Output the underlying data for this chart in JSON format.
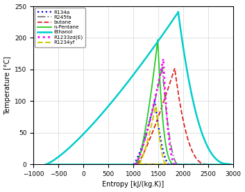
{
  "xlabel": "Entropy [kJ/(kg.K)]",
  "ylabel": "Temperature [°C]",
  "xlim": [
    -1000,
    3000
  ],
  "ylim": [
    0,
    250
  ],
  "xticks": [
    -1000,
    -500,
    0,
    500,
    1000,
    1500,
    2000,
    2500,
    3000
  ],
  "yticks": [
    0,
    50,
    100,
    150,
    200,
    250
  ],
  "fluids": [
    {
      "name": "R134a",
      "color": "#0000EE",
      "linestyle": "dotted",
      "linewidth": 1.6,
      "Tc": 101.06,
      "s_liq_0": 1000,
      "s_vap_0": 1720,
      "sc": 1432,
      "liq_exp": 0.72,
      "vap_exp": 0.55
    },
    {
      "name": "R245fa",
      "color": "#777777",
      "linestyle": "dashdot",
      "linewidth": 1.3,
      "Tc": 154.01,
      "s_liq_0": 1040,
      "s_vap_0": 1900,
      "sc": 1580,
      "liq_exp": 0.75,
      "vap_exp": 0.48
    },
    {
      "name": "butane",
      "color": "#DD2222",
      "linestyle": "dashed",
      "linewidth": 1.3,
      "Tc": 151.98,
      "s_liq_0": 1080,
      "s_vap_0": 2490,
      "sc": 1830,
      "liq_exp": 0.82,
      "vap_exp": 0.38
    },
    {
      "name": "n-Pentane",
      "color": "#22CC22",
      "linestyle": "solid",
      "linewidth": 1.3,
      "Tc": 196.55,
      "s_liq_0": 1060,
      "s_vap_0": 1850,
      "sc": 1490,
      "liq_exp": 0.68,
      "vap_exp": 0.32
    },
    {
      "name": "Ethanol",
      "color": "#00CCCC",
      "linestyle": "solid",
      "linewidth": 1.8,
      "Tc": 240.75,
      "s_liq_0": -750,
      "s_vap_0": 2950,
      "sc": 1900,
      "liq_exp": 0.78,
      "vap_exp": 0.38
    },
    {
      "name": "R1233zd(E)",
      "color": "#FF00FF",
      "linestyle": "dotted",
      "linewidth": 2.0,
      "Tc": 166.45,
      "s_liq_0": 1040,
      "s_vap_0": 1840,
      "sc": 1600,
      "liq_exp": 0.74,
      "vap_exp": 0.46
    },
    {
      "name": "R1234yf",
      "color": "#CCCC00",
      "linestyle": "dashed",
      "linewidth": 1.5,
      "Tc": 94.7,
      "s_liq_0": 1110,
      "s_vap_0": 1660,
      "sc": 1455,
      "liq_exp": 0.72,
      "vap_exp": 0.52
    }
  ]
}
